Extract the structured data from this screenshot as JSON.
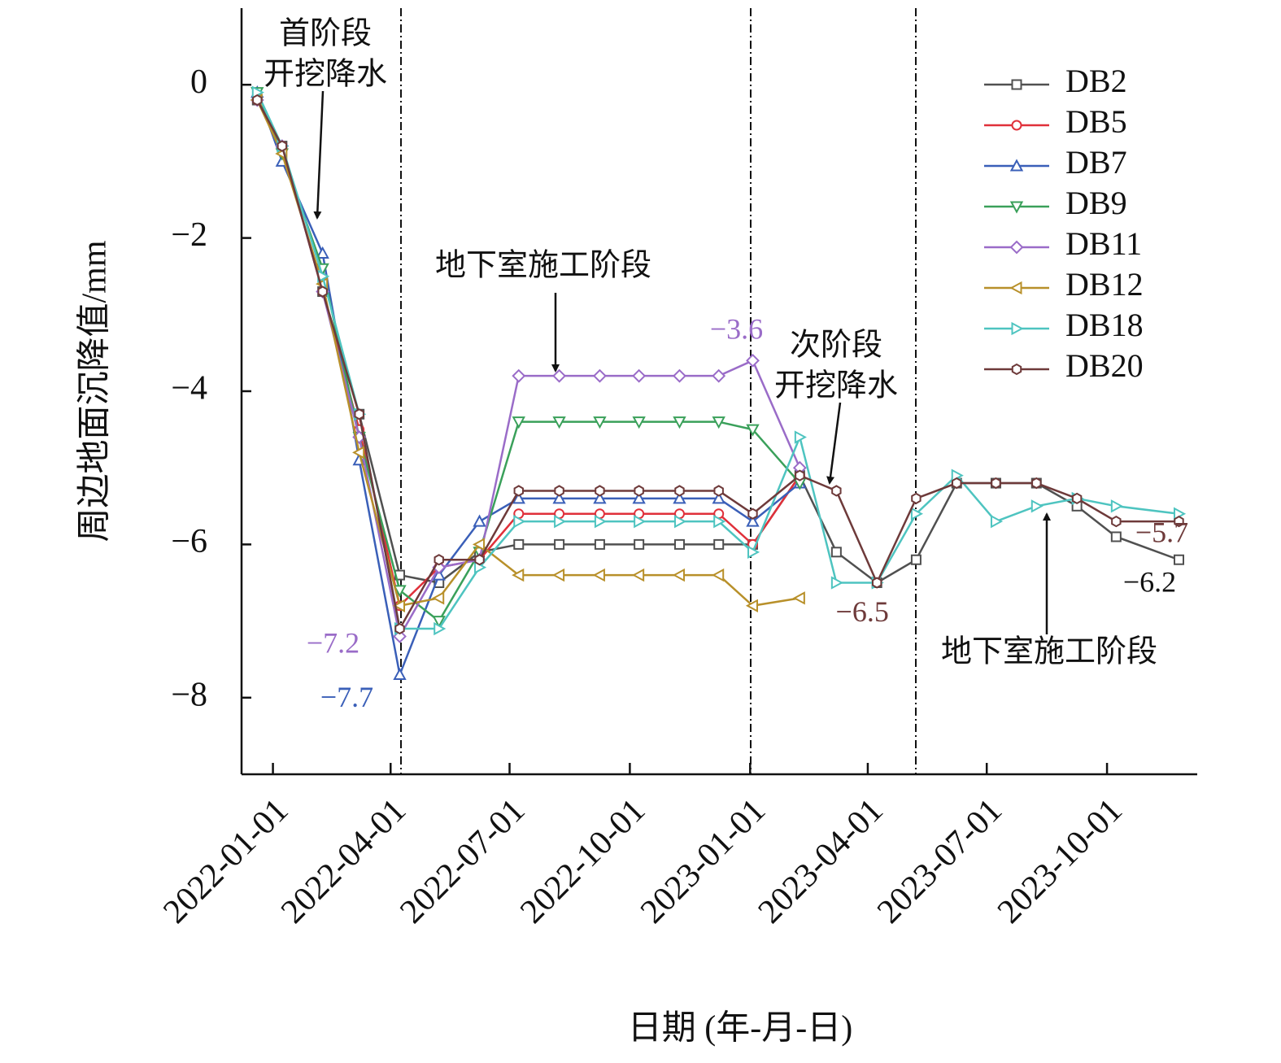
{
  "chart_data": {
    "type": "line",
    "x_label": "日期 (年-月-日)",
    "y_label": "周边地面沉降值/mm",
    "x": [
      "2021-12-20",
      "2022-01-08",
      "2022-02-08",
      "2022-03-08",
      "2022-04-08",
      "2022-05-08",
      "2022-06-08",
      "2022-07-08",
      "2022-08-08",
      "2022-09-08",
      "2022-10-08",
      "2022-11-08",
      "2022-12-08",
      "2023-01-03",
      "2023-02-08",
      "2023-03-08",
      "2023-04-08",
      "2023-05-08",
      "2023-06-08",
      "2023-07-08",
      "2023-08-08",
      "2023-09-08",
      "2023-10-08",
      "2023-11-25"
    ],
    "xlim": [
      "2021-12-08",
      "2023-12-09"
    ],
    "xticks": [
      "2022-01-01",
      "2022-04-01",
      "2022-07-01",
      "2022-10-01",
      "2023-01-01",
      "2023-04-01",
      "2023-07-01",
      "2023-10-01"
    ],
    "ylim": [
      -9,
      1
    ],
    "yticks": [
      0,
      {
        "value": -2,
        "label": "−2"
      },
      {
        "value": -4,
        "label": "−4"
      },
      {
        "value": -6,
        "label": "−6"
      },
      {
        "value": -8,
        "label": "−8"
      }
    ],
    "grid": false,
    "legend": "upper right",
    "series": [
      {
        "name": "DB2",
        "color": "#505050",
        "marker": "square",
        "values": [
          -0.2,
          -0.8,
          -2.7,
          -4.3,
          -6.4,
          -6.5,
          -6.1,
          -6.0,
          -6.0,
          -6.0,
          -6.0,
          -6.0,
          -6.0,
          -6.0,
          -5.1,
          -6.1,
          -6.5,
          -6.2,
          -5.2,
          -5.2,
          -5.2,
          -5.5,
          -5.9,
          -6.2
        ],
        "value_labels": [
          null,
          null,
          null,
          null,
          null,
          null,
          null,
          null,
          null,
          null,
          null,
          null,
          null,
          null,
          null,
          null,
          null,
          null,
          null,
          null,
          null,
          null,
          null,
          "−6.2"
        ]
      },
      {
        "name": "DB5",
        "color": "#e0303a",
        "marker": "circle",
        "values": [
          -0.2,
          -0.8,
          -2.7,
          -4.5,
          -6.8,
          -6.3,
          -6.2,
          -5.6,
          -5.6,
          -5.6,
          -5.6,
          -5.6,
          -5.6,
          -6.0,
          -5.1,
          null,
          null,
          null,
          null,
          null,
          null,
          null,
          null,
          null
        ]
      },
      {
        "name": "DB7",
        "color": "#3a5fb8",
        "marker": "triangle-up",
        "values": [
          -0.1,
          -1.0,
          -2.2,
          -4.9,
          -7.7,
          -6.4,
          -5.7,
          -5.4,
          -5.4,
          -5.4,
          -5.4,
          -5.4,
          -5.4,
          -5.7,
          -5.2,
          null,
          null,
          null,
          null,
          null,
          null,
          null,
          null,
          null
        ],
        "value_labels": [
          null,
          null,
          null,
          null,
          "−7.7",
          null,
          null,
          null,
          null,
          null,
          null,
          null,
          null,
          null,
          null,
          null,
          null,
          null,
          null,
          null,
          null,
          null,
          null,
          null
        ]
      },
      {
        "name": "DB9",
        "color": "#3aa05a",
        "marker": "triangle-down",
        "values": [
          -0.1,
          -0.9,
          -2.4,
          -4.6,
          -6.6,
          -7.0,
          -6.1,
          -4.4,
          -4.4,
          -4.4,
          -4.4,
          -4.4,
          -4.4,
          -4.5,
          -5.2,
          null,
          null,
          null,
          null,
          null,
          null,
          null,
          null,
          null
        ]
      },
      {
        "name": "DB11",
        "color": "#9a6cc8",
        "marker": "diamond",
        "values": [
          -0.2,
          -0.8,
          -2.7,
          -4.6,
          -7.2,
          -6.3,
          -6.2,
          -3.8,
          -3.8,
          -3.8,
          -3.8,
          -3.8,
          -3.8,
          -3.6,
          -5.0,
          null,
          null,
          null,
          null,
          null,
          null,
          null,
          null,
          null
        ],
        "value_labels": [
          null,
          null,
          null,
          null,
          "−7.2",
          null,
          null,
          null,
          null,
          null,
          null,
          null,
          null,
          "−3.6",
          null,
          null,
          null,
          null,
          null,
          null,
          null,
          null,
          null,
          null
        ]
      },
      {
        "name": "DB12",
        "color": "#b8902a",
        "marker": "triangle-left",
        "values": [
          -0.2,
          -0.9,
          -2.6,
          -4.8,
          -6.8,
          -6.7,
          -6.0,
          -6.4,
          -6.4,
          -6.4,
          -6.4,
          -6.4,
          -6.4,
          -6.8,
          -6.7,
          null,
          null,
          null,
          null,
          null,
          null,
          null,
          null,
          null
        ]
      },
      {
        "name": "DB18",
        "color": "#4ec4c0",
        "marker": "triangle-right",
        "values": [
          -0.1,
          -0.8,
          -2.5,
          -4.3,
          -7.1,
          -7.1,
          -6.3,
          -5.7,
          -5.7,
          -5.7,
          -5.7,
          -5.7,
          -5.7,
          -6.1,
          -4.6,
          -6.5,
          -6.5,
          -5.6,
          -5.1,
          -5.7,
          -5.5,
          -5.4,
          -5.5,
          -5.6
        ]
      },
      {
        "name": "DB20",
        "color": "#6e3a3a",
        "marker": "hexagon",
        "values": [
          -0.2,
          -0.8,
          -2.7,
          -4.3,
          -7.1,
          -6.2,
          -6.2,
          -5.3,
          -5.3,
          -5.3,
          -5.3,
          -5.3,
          -5.3,
          -5.6,
          -5.1,
          -5.3,
          -6.5,
          -5.4,
          -5.2,
          -5.2,
          -5.2,
          -5.4,
          -5.7,
          -5.7
        ],
        "value_labels": [
          null,
          null,
          null,
          null,
          null,
          null,
          null,
          null,
          null,
          null,
          null,
          null,
          null,
          null,
          null,
          null,
          "−6.5",
          null,
          null,
          null,
          null,
          null,
          null,
          "−5.7"
        ]
      }
    ],
    "annotations": [
      {
        "lines": [
          "首阶段",
          "开挖降水"
        ]
      },
      {
        "lines": [
          "地下室施工阶段"
        ]
      },
      {
        "lines": [
          "次阶段",
          "开挖降水"
        ]
      },
      {
        "lines": [
          "地下室施工阶段"
        ]
      }
    ]
  }
}
